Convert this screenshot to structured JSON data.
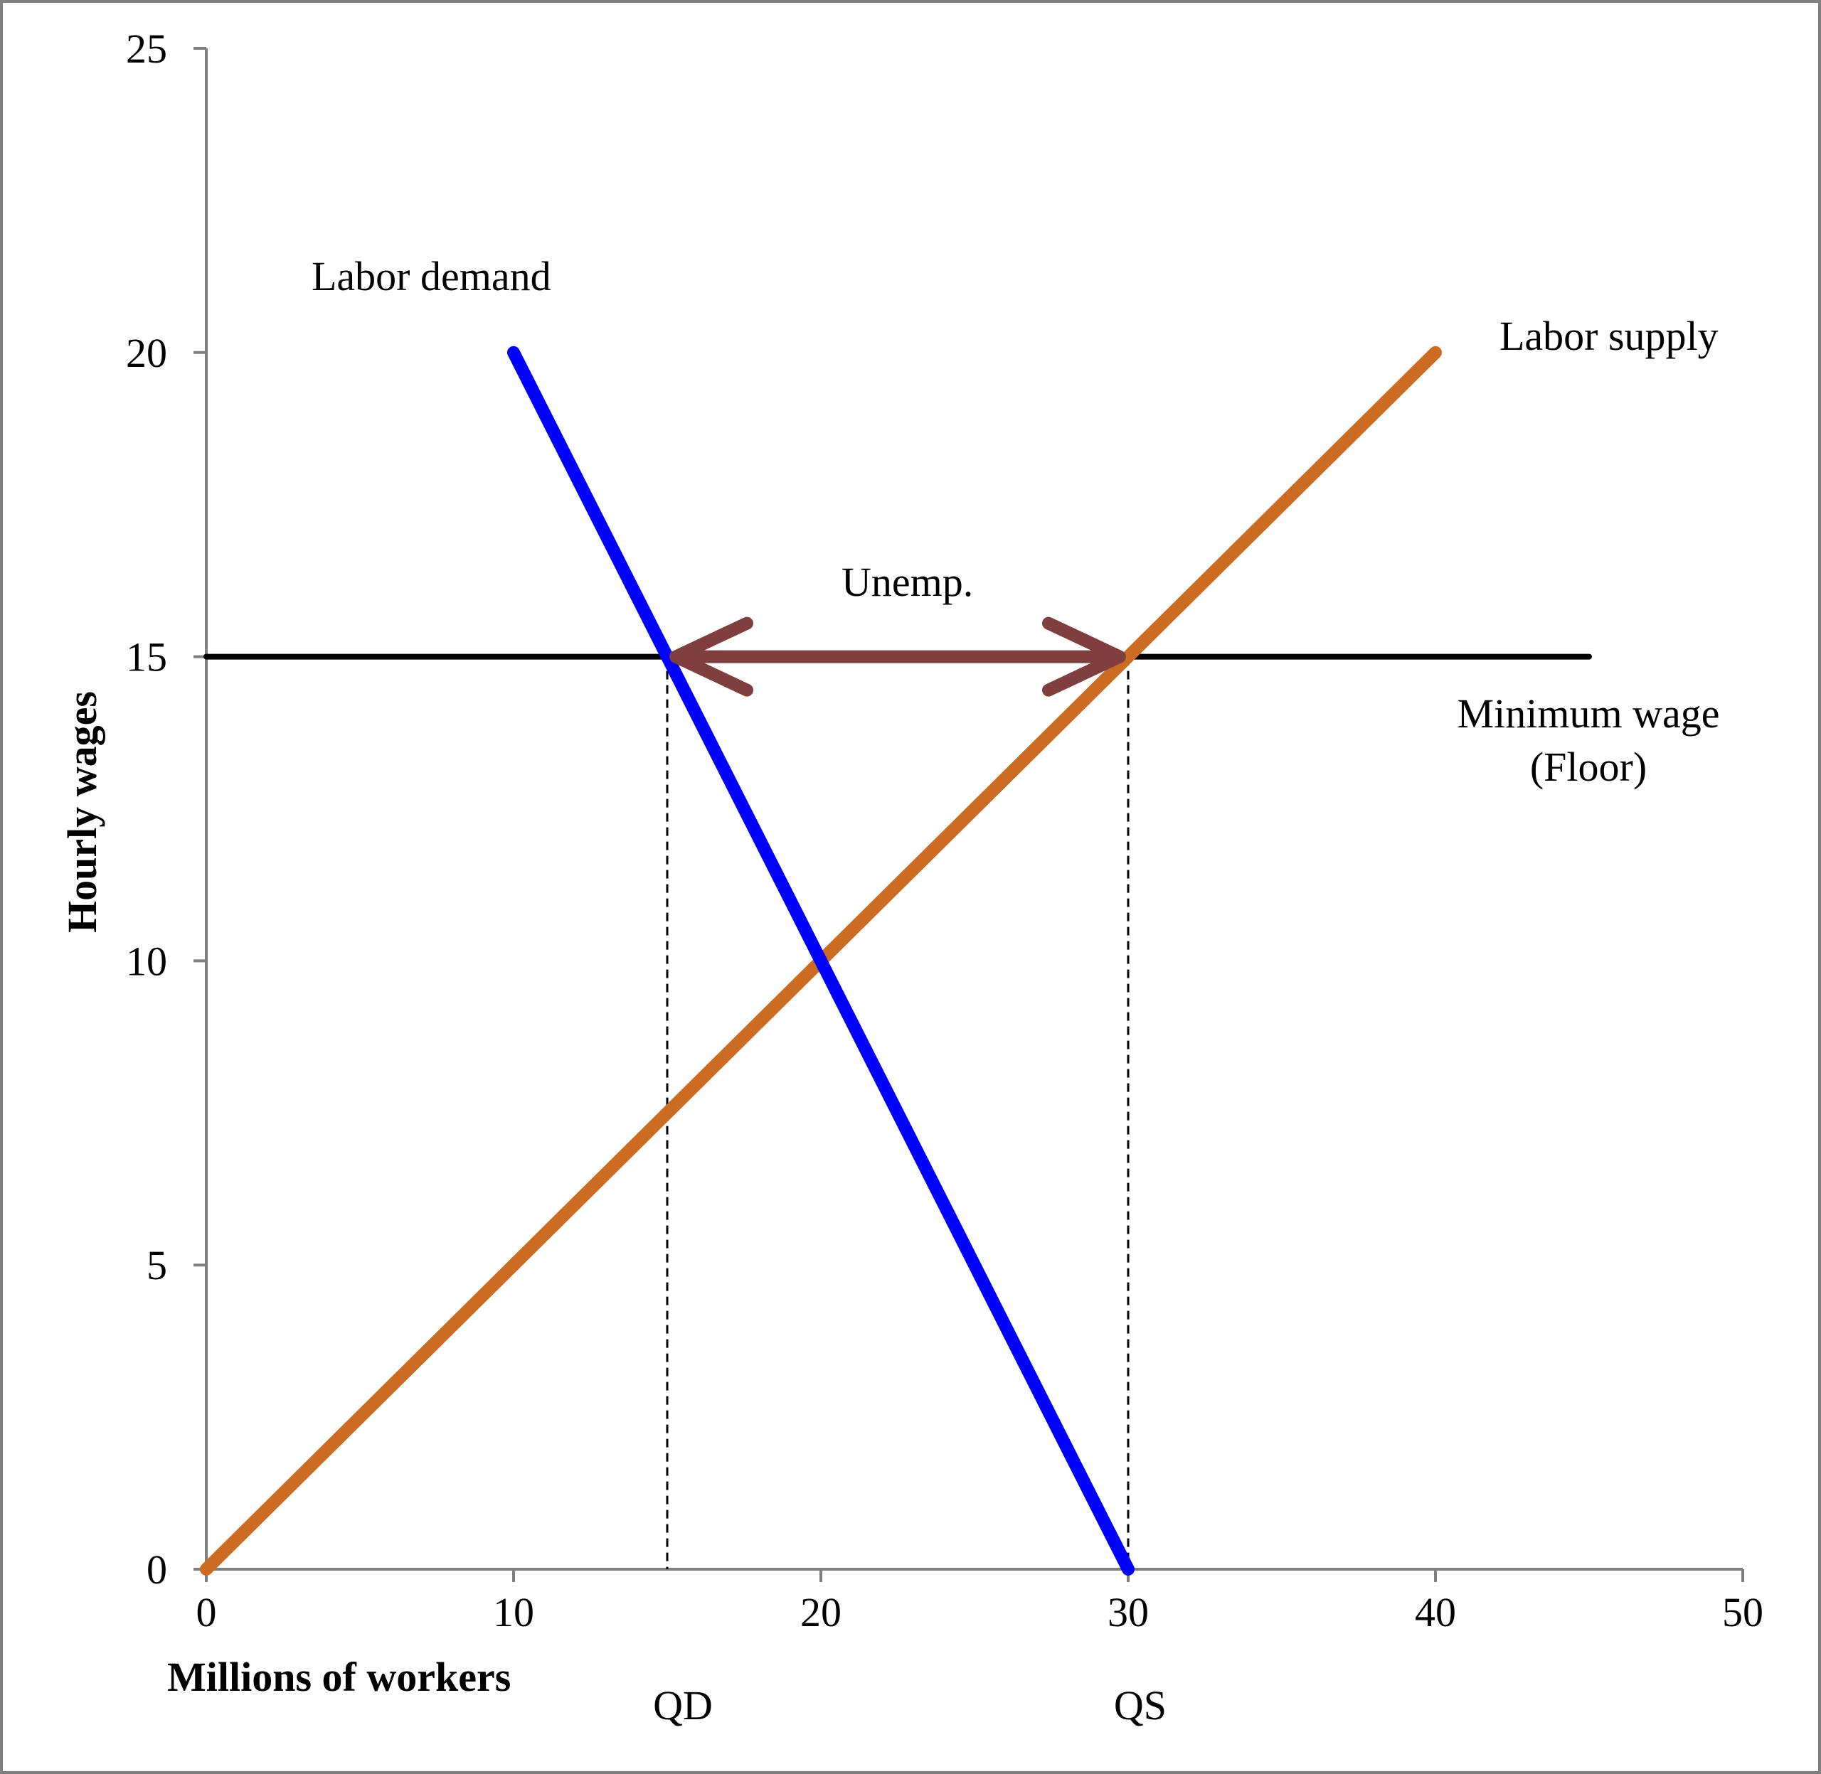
{
  "chart_data": {
    "type": "line",
    "title": "",
    "xlabel": "Millions of workers",
    "ylabel": "Hourly wages",
    "xlim": [
      0,
      50
    ],
    "ylim": [
      0,
      25
    ],
    "x_ticks": [
      0,
      10,
      20,
      30,
      40,
      50
    ],
    "y_ticks": [
      0,
      5,
      10,
      15,
      20,
      25
    ],
    "x_tick_labels": [
      "0",
      "10",
      "20",
      "30",
      "40",
      "50"
    ],
    "y_tick_labels": [
      "0",
      "5",
      "10",
      "15",
      "20",
      "25"
    ],
    "grid": false,
    "series": [
      {
        "name": "Labor demand",
        "color": "#0000ff",
        "points": [
          [
            10,
            20
          ],
          [
            30,
            0
          ]
        ]
      },
      {
        "name": "Labor supply",
        "color": "#cc6b22",
        "points": [
          [
            0,
            0
          ],
          [
            40,
            20
          ]
        ]
      },
      {
        "name": "Minimum wage (Floor)",
        "color": "#000000",
        "points": [
          [
            0,
            15
          ],
          [
            45,
            15
          ]
        ]
      }
    ],
    "annotations": {
      "demand_label": "Labor demand",
      "supply_label": "Labor supply",
      "min_wage_label_line1": "Minimum wage",
      "min_wage_label_line2": "(Floor)",
      "unemployment_label": "Unemp.",
      "qd_label": "QD",
      "qs_label": "QS"
    },
    "reference_lines": {
      "qd_x": 15,
      "qs_x": 30,
      "wage_y": 15
    },
    "unemployment_arrow": {
      "from_x": 15,
      "to_x": 30,
      "y": 15,
      "color": "#7f3f3f"
    }
  }
}
